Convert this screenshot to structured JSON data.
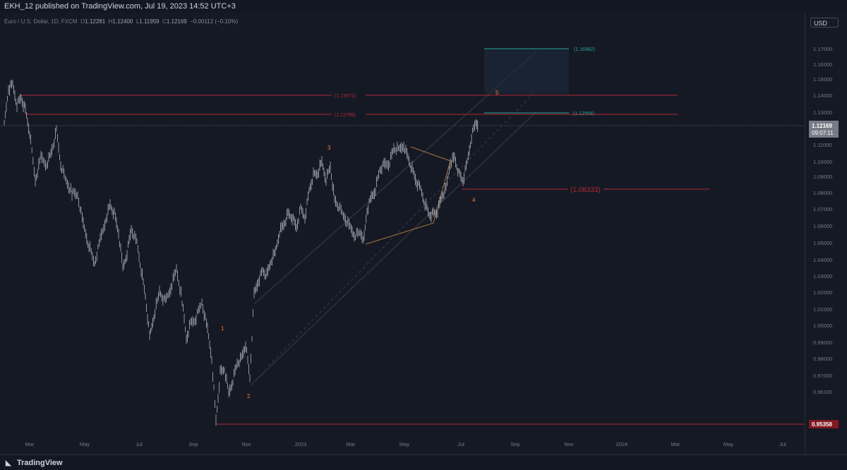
{
  "header": {
    "publisher_line": "EKH_12 published on TradingView.com, Jul 19, 2023 14:52 UTC+3"
  },
  "legend": {
    "symbol": "Euro / U.S. Dollar, 1D, FXCM",
    "open_label": "O",
    "open": "1.12281",
    "high_label": "H",
    "high": "1.12400",
    "low_label": "L",
    "low": "1.11959",
    "close_label": "C",
    "close": "1.12169",
    "change": "−0.00112 (−0.10%)"
  },
  "currency_button": "USD",
  "price_axis": {
    "ticks": [
      "1.17000",
      "1.16000",
      "1.15000",
      "1.14000",
      "1.13000",
      "1.11000",
      "1.10000",
      "1.09000",
      "1.08000",
      "1.07000",
      "1.06000",
      "1.05000",
      "1.04000",
      "1.03000",
      "1.02000",
      "1.01000",
      "1.00000",
      "0.99000",
      "0.98000",
      "0.97000",
      "0.96100"
    ],
    "last_price": "1.12169",
    "countdown": "09:07:11",
    "low_marker": "0.95358"
  },
  "time_axis": {
    "ticks": [
      "Mar",
      "May",
      "Jul",
      "Sep",
      "Nov",
      "2023",
      "Mar",
      "May",
      "Jul",
      "Sep",
      "Nov",
      "2024",
      "Mar",
      "May",
      "Jul"
    ]
  },
  "annotations": {
    "level_top_red": "(1.13971)",
    "level_mid_red": "(1.12799)",
    "level_support": "(1.08333)",
    "target_top_green": "(1.16982)",
    "target_mid_green": "(1.12958)",
    "wave_labels": [
      "1",
      "2",
      "3",
      "4",
      "5"
    ]
  },
  "footer": {
    "brand": "TradingView"
  },
  "colors": {
    "background": "#151924",
    "candles": "#b2b5be",
    "red_level": "#b22833",
    "green_target": "#26a69a",
    "wave_label": "#ff7a29",
    "triangle": "#a9753a"
  }
}
